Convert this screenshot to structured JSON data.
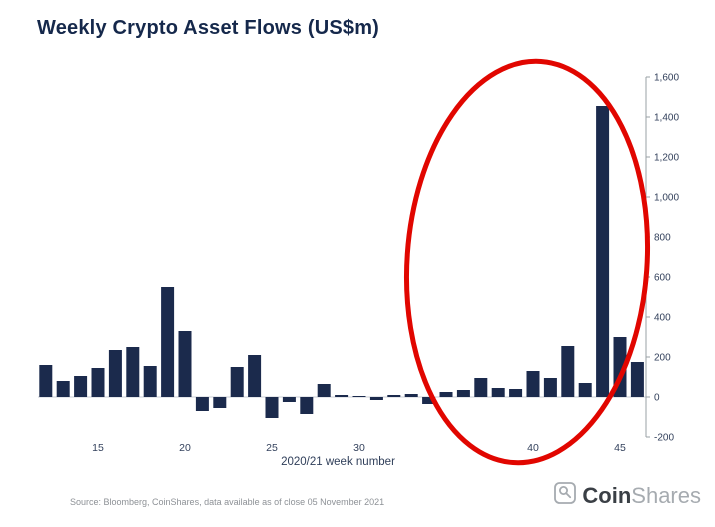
{
  "title": "Weekly Crypto Asset Flows (US$m)",
  "source_note": "Source: Bloomberg, CoinShares, data available as of close 05 November 2021",
  "logo": {
    "bold": "Coin",
    "light": "Shares"
  },
  "colors": {
    "bar": "#1b2a4c",
    "title": "#15284b",
    "axis": "#9aa0a6",
    "tick_label": "#33415c",
    "grid": "#c9cdd4",
    "annotation": "#e10600",
    "source": "#8d9196",
    "logo_bold": "#3a3f45",
    "logo_light": "#a6abb0"
  },
  "chart_data": {
    "type": "bar",
    "title": "Weekly Crypto Asset Flows (US$m)",
    "xlabel": "2020/21 week number",
    "ylabel": "",
    "ylim": [
      -200,
      1600
    ],
    "ytick_step": 200,
    "grid": "off",
    "axis_side": "right",
    "x": [
      12,
      13,
      14,
      15,
      16,
      17,
      18,
      19,
      20,
      21,
      22,
      23,
      24,
      25,
      26,
      27,
      28,
      29,
      30,
      31,
      32,
      33,
      34,
      35,
      36,
      37,
      38,
      39,
      40,
      41,
      42,
      43,
      44,
      45,
      46
    ],
    "values": [
      160,
      80,
      105,
      145,
      235,
      250,
      155,
      550,
      330,
      -70,
      -55,
      150,
      210,
      -105,
      -25,
      -85,
      65,
      10,
      5,
      -15,
      10,
      15,
      -35,
      25,
      35,
      95,
      45,
      40,
      130,
      95,
      255,
      70,
      1455,
      300,
      175
    ],
    "yticks": [
      {
        "v": 1600,
        "label": "1,600"
      },
      {
        "v": 1400,
        "label": "1,400"
      },
      {
        "v": 1200,
        "label": "1,200"
      },
      {
        "v": 1000,
        "label": "1,000"
      },
      {
        "v": 800,
        "label": "800"
      },
      {
        "v": 600,
        "label": "600"
      },
      {
        "v": 400,
        "label": "400"
      },
      {
        "v": 200,
        "label": "200"
      },
      {
        "v": 0,
        "label": "0"
      },
      {
        "v": -200,
        "label": "-200"
      }
    ],
    "xticks": [
      {
        "v": 15,
        "label": "15"
      },
      {
        "v": 20,
        "label": "20"
      },
      {
        "v": 25,
        "label": "25"
      },
      {
        "v": 30,
        "label": "30"
      },
      {
        "v": 40,
        "label": "40"
      },
      {
        "v": 45,
        "label": "45"
      }
    ],
    "annotation": {
      "shape": "ellipse",
      "color": "#e10600",
      "highlights": "hand-drawn red oval circling the recent weeks including the record ~1,455 inflow spike"
    }
  }
}
